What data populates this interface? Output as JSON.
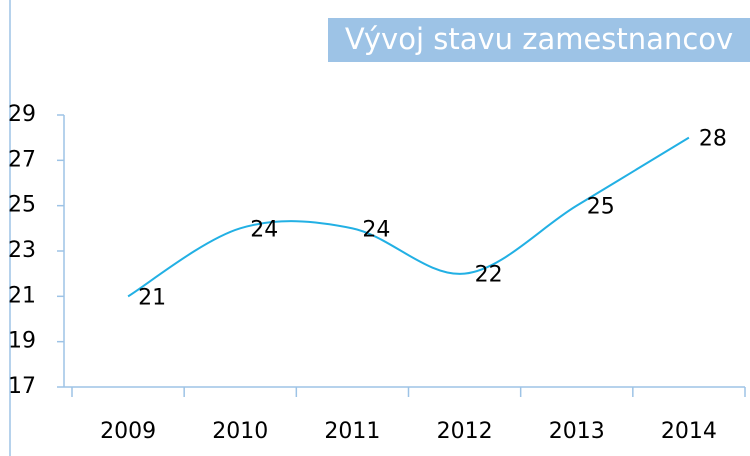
{
  "chart_data": {
    "type": "line",
    "title": "Vývoj stavu zamestnancov",
    "categories": [
      "2009",
      "2010",
      "2011",
      "2012",
      "2013",
      "2014"
    ],
    "values": [
      21,
      24,
      24,
      22,
      25,
      28
    ],
    "color": "#22b0e4",
    "smooth": true,
    "ylim": [
      17,
      29
    ],
    "yticks": [
      17,
      19,
      21,
      23,
      25,
      27,
      29
    ]
  }
}
